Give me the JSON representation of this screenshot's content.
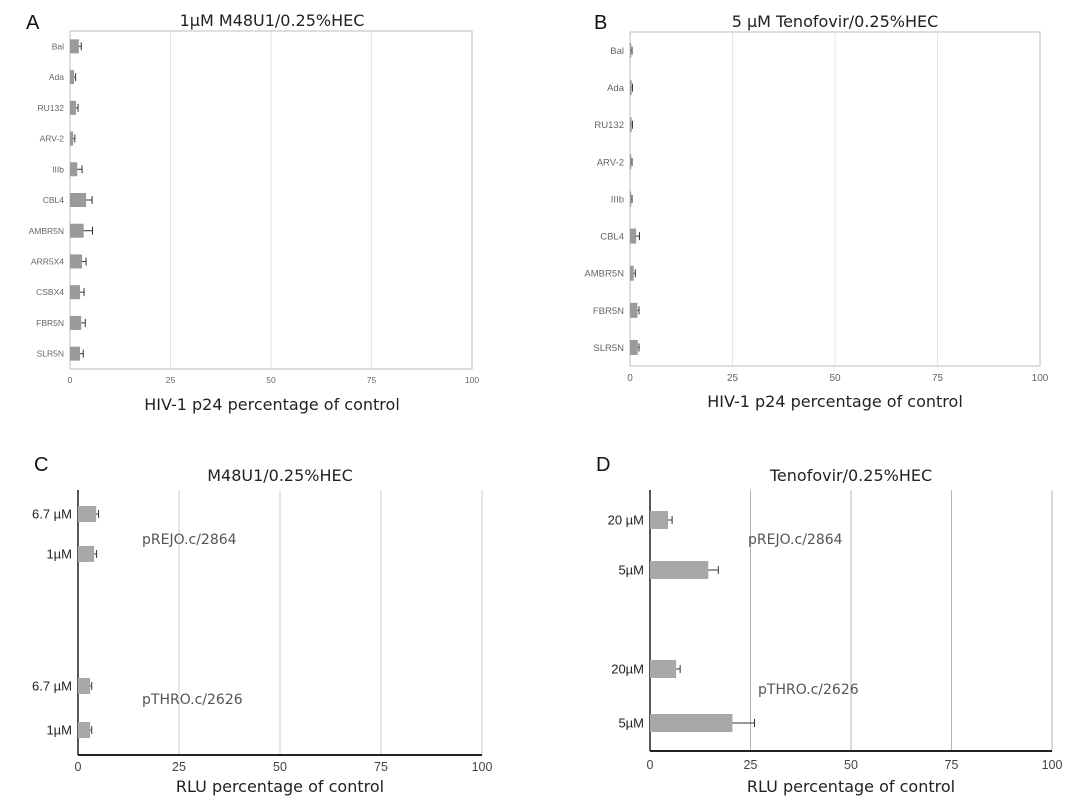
{
  "chart_data": [
    {
      "id": "A",
      "type": "bar",
      "orientation": "horizontal",
      "panel_letter": "A",
      "title": "1µM M48U1/0.25%HEC",
      "xlabel": "HIV-1 p24 percentage of control",
      "xlim": [
        0,
        100
      ],
      "xticks": [
        "0",
        "25",
        "50",
        "75",
        "100"
      ],
      "grid": true,
      "categories": [
        "Bal",
        "Ada",
        "RU132",
        "ARV-2",
        "IIIb",
        "CBL4",
        "AMBR5N",
        "ARR5X4",
        "CSBX4",
        "FBR5N",
        "SLR5N"
      ],
      "values": [
        2.2,
        1.0,
        1.5,
        0.8,
        1.8,
        4.0,
        3.4,
        3.0,
        2.5,
        2.8,
        2.5
      ],
      "errors": [
        0.6,
        0.4,
        0.5,
        0.4,
        1.2,
        1.5,
        2.2,
        1.0,
        1.0,
        1.0,
        0.8
      ]
    },
    {
      "id": "B",
      "type": "bar",
      "orientation": "horizontal",
      "panel_letter": "B",
      "title": "5 µM Tenofovir/0.25%HEC",
      "xlabel": "HIV-1 p24 percentage of control",
      "xlim": [
        0,
        100
      ],
      "xticks": [
        "0",
        "25",
        "50",
        "75",
        "100"
      ],
      "grid": true,
      "categories": [
        "Bal",
        "Ada",
        "RU132",
        "ARV-2",
        "IIIb",
        "CBL4",
        "AMBR5N",
        "FBR5N",
        "SLR5N"
      ],
      "values": [
        0.3,
        0.4,
        0.4,
        0.3,
        0.3,
        1.5,
        0.9,
        1.8,
        1.9
      ],
      "errors": [
        0.2,
        0.2,
        0.2,
        0.2,
        0.2,
        0.8,
        0.4,
        0.4,
        0.3
      ]
    },
    {
      "id": "C",
      "type": "bar",
      "orientation": "horizontal",
      "panel_letter": "C",
      "title": "M48U1/0.25%HEC",
      "xlabel": "RLU percentage of control",
      "xlim": [
        0,
        100
      ],
      "xticks": [
        "0",
        "25",
        "50",
        "75",
        "100"
      ],
      "grid": true,
      "categories": [
        "6.7 µM",
        "1µM",
        "6.7 µM",
        "1µM"
      ],
      "values": [
        4.5,
        4.0,
        3.0,
        3.0
      ],
      "errors": [
        0.6,
        0.6,
        0.4,
        0.4
      ],
      "annotations": [
        "pREJO.c/2864",
        "pTHRO.c/2626"
      ]
    },
    {
      "id": "D",
      "type": "bar",
      "orientation": "horizontal",
      "panel_letter": "D",
      "title": "Tenofovir/0.25%HEC",
      "xlabel": "RLU percentage of control",
      "xlim": [
        0,
        100
      ],
      "xticks": [
        "0",
        "25",
        "50",
        "75",
        "100"
      ],
      "grid": true,
      "categories": [
        "20 µM",
        "5µM",
        "20µM",
        "5µM"
      ],
      "values": [
        4.5,
        14.5,
        6.5,
        20.5
      ],
      "errors": [
        1.0,
        2.5,
        1.0,
        5.5
      ],
      "annotations": [
        "pREJO.c/2864",
        "pTHRO.c/2626"
      ]
    }
  ]
}
